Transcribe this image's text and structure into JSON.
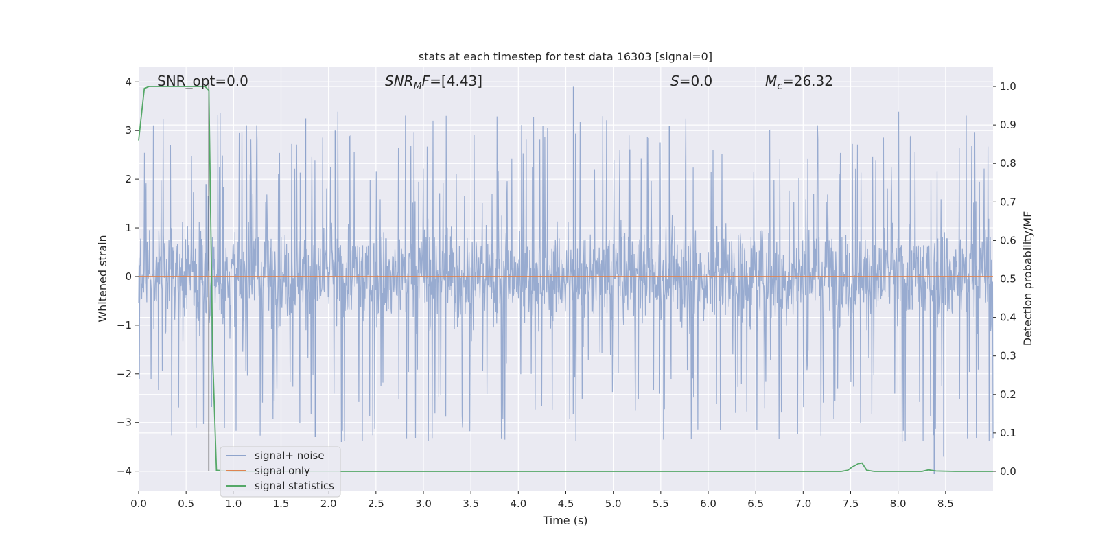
{
  "chart_data": {
    "type": "line",
    "title": "stats at each timestep for test data 16303 [signal=0]",
    "xlabel": "Time (s)",
    "ylabel_left": "Whitened strain",
    "ylabel_right": "Detection probability/MF",
    "xlim": [
      0.0,
      9.0
    ],
    "ylim_left": [
      -4.4,
      4.3
    ],
    "ylim_right": [
      -0.05,
      1.05
    ],
    "x_ticks": [
      "0.0",
      "0.5",
      "1.0",
      "1.5",
      "2.0",
      "2.5",
      "3.0",
      "3.5",
      "4.0",
      "4.5",
      "5.0",
      "5.5",
      "6.0",
      "6.5",
      "7.0",
      "7.5",
      "8.0",
      "8.5"
    ],
    "y_ticks_left": [
      "4",
      "3",
      "2",
      "1",
      "0",
      "−1",
      "−2",
      "−3",
      "−4"
    ],
    "y_ticks_right": [
      "1.0",
      "0.9",
      "0.8",
      "0.7",
      "0.6",
      "0.5",
      "0.4",
      "0.3",
      "0.2",
      "0.1",
      "0.0"
    ],
    "grid": true,
    "legend_position": "lower-left",
    "annotations": {
      "snr_opt": "SNR_opt=0.0",
      "snr_mf_main": "SNR",
      "snr_mf_sub": "M",
      "snr_mf_rest": "F=[4.43]",
      "s_var": "S",
      "s_rest": "=0.0",
      "mc_main": "M",
      "mc_sub": "c",
      "mc_rest": "=26.32"
    },
    "vertical_marker": {
      "x": 0.74,
      "from": -4.0,
      "to": 4.0
    },
    "series": [
      {
        "name": "signal+ noise",
        "color": "#8fa4cc",
        "axis": "left",
        "t_range": [
          0.0,
          9.0
        ],
        "envelope_abs": [
          1.5,
          3.4
        ],
        "notable_peaks": [
          [
            0.71,
            1.9
          ],
          [
            1.76,
            3.25
          ],
          [
            2.07,
            3.0
          ],
          [
            4.58,
            3.9
          ],
          [
            5.59,
            3.1
          ],
          [
            5.53,
            -3.35
          ],
          [
            8.38,
            -4.05
          ],
          [
            8.48,
            -3.7
          ],
          [
            1.86,
            -3.3
          ]
        ]
      },
      {
        "name": "signal only",
        "color": "#dd8452",
        "axis": "left",
        "x": [
          0.0,
          9.0
        ],
        "y": [
          0.0,
          0.0
        ]
      },
      {
        "name": "signal statistics",
        "color": "#55a868",
        "axis": "right",
        "x": [
          0.0,
          0.06,
          0.11,
          0.2,
          0.4,
          0.6,
          0.7,
          0.74,
          0.78,
          0.82,
          1.0,
          2.0,
          3.0,
          4.0,
          5.0,
          6.0,
          7.0,
          7.4,
          7.47,
          7.52,
          7.58,
          7.62,
          7.67,
          7.75,
          8.0,
          8.25,
          8.32,
          8.4,
          8.6,
          9.0
        ],
        "y": [
          0.86,
          0.995,
          1.0,
          1.0,
          1.0,
          1.0,
          1.0,
          0.99,
          0.3,
          0.003,
          0.0,
          0.0,
          0.0,
          0.0,
          0.0,
          0.0,
          0.0,
          0.0,
          0.003,
          0.012,
          0.02,
          0.022,
          0.003,
          0.0,
          0.0,
          0.0,
          0.004,
          0.001,
          0.0,
          0.0
        ]
      }
    ]
  }
}
